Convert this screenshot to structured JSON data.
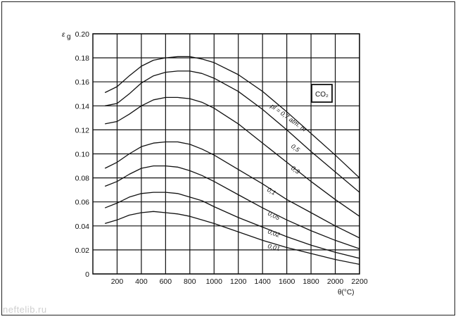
{
  "chart_data": {
    "type": "line",
    "title": "",
    "xlabel": "θ(°C)",
    "ylabel": "ε",
    "ylabel_sub": "g",
    "xlim": [
      0,
      2200
    ],
    "ylim": [
      0,
      0.2
    ],
    "x_ticks": [
      "200",
      "400",
      "600",
      "800",
      "1000",
      "1200",
      "1400",
      "1600",
      "1800",
      "2000",
      "2200"
    ],
    "y_ticks": [
      "0",
      "0.02",
      "0.04",
      "0.06",
      "0.08",
      "0.10",
      "0.12",
      "0.14",
      "0.16",
      "0.18",
      "0.20"
    ],
    "grid": true,
    "box_label": "CO₂",
    "series": [
      {
        "name": "pl = 0,7 atm. m",
        "x": [
          100,
          200,
          300,
          400,
          500,
          600,
          700,
          800,
          900,
          1000,
          1200,
          1400,
          1600,
          1800,
          2000,
          2200
        ],
        "values": [
          0.151,
          0.156,
          0.165,
          0.173,
          0.178,
          0.18,
          0.181,
          0.181,
          0.179,
          0.176,
          0.166,
          0.152,
          0.135,
          0.117,
          0.099,
          0.08
        ]
      },
      {
        "name": "0,5",
        "x": [
          100,
          200,
          300,
          400,
          500,
          600,
          700,
          800,
          900,
          1000,
          1200,
          1400,
          1600,
          1800,
          2000,
          2200
        ],
        "values": [
          0.14,
          0.142,
          0.15,
          0.159,
          0.165,
          0.168,
          0.169,
          0.169,
          0.167,
          0.163,
          0.152,
          0.137,
          0.12,
          0.102,
          0.085,
          0.068
        ]
      },
      {
        "name": "0,3",
        "x": [
          100,
          200,
          300,
          400,
          500,
          600,
          700,
          800,
          900,
          1000,
          1200,
          1400,
          1600,
          1800,
          2000,
          2200
        ],
        "values": [
          0.125,
          0.127,
          0.133,
          0.14,
          0.145,
          0.147,
          0.147,
          0.146,
          0.143,
          0.138,
          0.125,
          0.109,
          0.093,
          0.077,
          0.062,
          0.048
        ]
      },
      {
        "name": "0,1",
        "x": [
          100,
          200,
          300,
          400,
          500,
          600,
          700,
          800,
          900,
          1000,
          1200,
          1400,
          1600,
          1800,
          2000,
          2200
        ],
        "values": [
          0.088,
          0.093,
          0.1,
          0.106,
          0.109,
          0.11,
          0.11,
          0.108,
          0.104,
          0.099,
          0.087,
          0.075,
          0.062,
          0.051,
          0.04,
          0.03
        ]
      },
      {
        "name": "0,05",
        "x": [
          100,
          200,
          300,
          400,
          500,
          600,
          700,
          800,
          900,
          1000,
          1200,
          1400,
          1600,
          1800,
          2000,
          2200
        ],
        "values": [
          0.073,
          0.077,
          0.083,
          0.088,
          0.09,
          0.09,
          0.089,
          0.086,
          0.082,
          0.077,
          0.066,
          0.055,
          0.045,
          0.036,
          0.028,
          0.021
        ]
      },
      {
        "name": "0,02",
        "x": [
          100,
          200,
          300,
          400,
          500,
          600,
          700,
          800,
          900,
          1000,
          1200,
          1400,
          1600,
          1800,
          2000,
          2200
        ],
        "values": [
          0.055,
          0.059,
          0.064,
          0.067,
          0.068,
          0.068,
          0.067,
          0.064,
          0.061,
          0.056,
          0.047,
          0.039,
          0.031,
          0.024,
          0.018,
          0.013
        ]
      },
      {
        "name": "0,01",
        "x": [
          100,
          200,
          300,
          400,
          500,
          600,
          700,
          800,
          900,
          1000,
          1200,
          1400,
          1600,
          1800,
          2000,
          2200
        ],
        "values": [
          0.042,
          0.045,
          0.049,
          0.051,
          0.052,
          0.051,
          0.05,
          0.048,
          0.045,
          0.042,
          0.035,
          0.028,
          0.022,
          0.017,
          0.012,
          0.008
        ]
      }
    ]
  },
  "labels": {
    "curve_0": "pl = 0,7 atm. m",
    "curve_1": "0,5",
    "curve_2": "0,3",
    "curve_3": "0,1",
    "curve_4": "0,05",
    "curve_5": "0,02",
    "curve_6": "0,01"
  },
  "watermark": "neftelib.ru"
}
